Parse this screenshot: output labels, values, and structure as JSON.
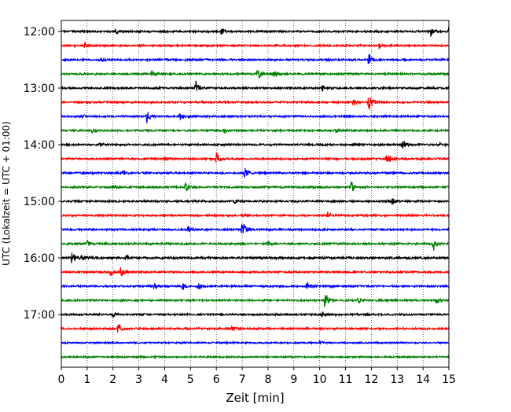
{
  "chart_data": {
    "type": "line",
    "xlabel": "Zeit  [min]",
    "ylabel": "UTC (Lokalzeit = UTC + 01:00)",
    "xlim": [
      0,
      15
    ],
    "x_ticks": [
      0,
      1,
      2,
      3,
      4,
      5,
      6,
      7,
      8,
      9,
      10,
      11,
      12,
      13,
      14,
      15
    ],
    "y_tick_labels": [
      "12:00",
      "13:00",
      "14:00",
      "15:00",
      "16:00",
      "17:00"
    ],
    "y_tick_row_index": [
      0,
      4,
      8,
      12,
      16,
      20
    ],
    "grid": "vertical dotted at each minute",
    "row_colors": [
      "#000000",
      "#ff0000",
      "#0000ff",
      "#008000"
    ],
    "series": [
      {
        "row": 0,
        "start": "12:00",
        "color": "#000000",
        "base_amp": 0.12,
        "events": [
          [
            2.1,
            0.35
          ],
          [
            6.2,
            0.4
          ],
          [
            14.3,
            0.8
          ],
          [
            15.0,
            0.5
          ]
        ]
      },
      {
        "row": 1,
        "start": "12:15",
        "color": "#ff0000",
        "base_amp": 0.12,
        "events": [
          [
            0.9,
            0.55
          ],
          [
            12.3,
            0.35
          ]
        ]
      },
      {
        "row": 2,
        "start": "12:30",
        "color": "#0000ff",
        "base_amp": 0.12,
        "events": [
          [
            1.5,
            0.3
          ],
          [
            11.9,
            0.9
          ]
        ]
      },
      {
        "row": 3,
        "start": "12:45",
        "color": "#008000",
        "base_amp": 0.12,
        "events": [
          [
            3.5,
            0.3
          ],
          [
            7.6,
            0.9
          ],
          [
            8.2,
            0.55
          ]
        ]
      },
      {
        "row": 4,
        "start": "13:00",
        "color": "#000000",
        "base_amp": 0.12,
        "events": [
          [
            5.2,
            1.1
          ],
          [
            10.1,
            0.6
          ]
        ]
      },
      {
        "row": 5,
        "start": "13:15",
        "color": "#ff0000",
        "base_amp": 0.12,
        "events": [
          [
            11.3,
            0.6
          ],
          [
            11.9,
            1.2
          ]
        ]
      },
      {
        "row": 6,
        "start": "13:30",
        "color": "#0000ff",
        "base_amp": 0.12,
        "events": [
          [
            0.8,
            0.25
          ],
          [
            3.3,
            1.2
          ],
          [
            4.6,
            0.6
          ]
        ]
      },
      {
        "row": 7,
        "start": "13:45",
        "color": "#008000",
        "base_amp": 0.12,
        "events": [
          [
            1.2,
            0.3
          ],
          [
            6.3,
            0.3
          ],
          [
            10.6,
            0.3
          ]
        ]
      },
      {
        "row": 8,
        "start": "14:00",
        "color": "#000000",
        "base_amp": 0.12,
        "events": [
          [
            1.5,
            0.3
          ],
          [
            13.2,
            0.8
          ],
          [
            14.6,
            0.3
          ]
        ]
      },
      {
        "row": 9,
        "start": "14:15",
        "color": "#ff0000",
        "base_amp": 0.12,
        "events": [
          [
            4.0,
            0.3
          ],
          [
            6.0,
            1.0
          ],
          [
            12.6,
            0.9
          ]
        ]
      },
      {
        "row": 10,
        "start": "14:30",
        "color": "#0000ff",
        "base_amp": 0.12,
        "events": [
          [
            2.4,
            0.3
          ],
          [
            7.1,
            0.9
          ]
        ]
      },
      {
        "row": 11,
        "start": "14:45",
        "color": "#008000",
        "base_amp": 0.12,
        "events": [
          [
            2.0,
            0.25
          ],
          [
            4.8,
            0.8
          ],
          [
            11.2,
            1.1
          ]
        ]
      },
      {
        "row": 12,
        "start": "15:00",
        "color": "#000000",
        "base_amp": 0.12,
        "events": [
          [
            6.7,
            0.3
          ],
          [
            12.8,
            0.45
          ]
        ]
      },
      {
        "row": 13,
        "start": "15:15",
        "color": "#ff0000",
        "base_amp": 0.12,
        "events": [
          [
            7.0,
            0.25
          ],
          [
            10.3,
            0.6
          ]
        ]
      },
      {
        "row": 14,
        "start": "15:30",
        "color": "#0000ff",
        "base_amp": 0.12,
        "events": [
          [
            4.9,
            0.5
          ],
          [
            7.0,
            1.3
          ]
        ]
      },
      {
        "row": 15,
        "start": "15:45",
        "color": "#008000",
        "base_amp": 0.12,
        "events": [
          [
            1.0,
            0.5
          ],
          [
            8.0,
            0.3
          ],
          [
            14.4,
            1.0
          ]
        ]
      },
      {
        "row": 16,
        "start": "16:00",
        "color": "#000000",
        "base_amp": 0.14,
        "events": [
          [
            0.4,
            0.8
          ],
          [
            0.8,
            0.5
          ],
          [
            2.5,
            0.3
          ]
        ]
      },
      {
        "row": 17,
        "start": "16:15",
        "color": "#ff0000",
        "base_amp": 0.12,
        "events": [
          [
            1.9,
            0.4
          ],
          [
            2.3,
            0.8
          ]
        ]
      },
      {
        "row": 18,
        "start": "16:30",
        "color": "#0000ff",
        "base_amp": 0.12,
        "events": [
          [
            3.6,
            0.4
          ],
          [
            4.7,
            0.5
          ],
          [
            5.3,
            0.6
          ],
          [
            9.5,
            0.6
          ]
        ]
      },
      {
        "row": 19,
        "start": "16:45",
        "color": "#008000",
        "base_amp": 0.12,
        "events": [
          [
            10.2,
            1.2
          ],
          [
            11.5,
            0.5
          ],
          [
            14.5,
            0.5
          ]
        ]
      },
      {
        "row": 20,
        "start": "17:00",
        "color": "#000000",
        "base_amp": 0.12,
        "events": [
          [
            2.0,
            0.3
          ],
          [
            10.1,
            0.3
          ]
        ]
      },
      {
        "row": 21,
        "start": "17:15",
        "color": "#ff0000",
        "base_amp": 0.12,
        "events": [
          [
            2.2,
            0.7
          ],
          [
            6.6,
            0.3
          ]
        ]
      },
      {
        "row": 22,
        "start": "17:30",
        "color": "#0000ff",
        "base_amp": 0.1,
        "events": [
          [
            10.0,
            0.3
          ]
        ]
      },
      {
        "row": 23,
        "start": "17:45",
        "color": "#008000",
        "base_amp": 0.1,
        "events": []
      }
    ]
  }
}
